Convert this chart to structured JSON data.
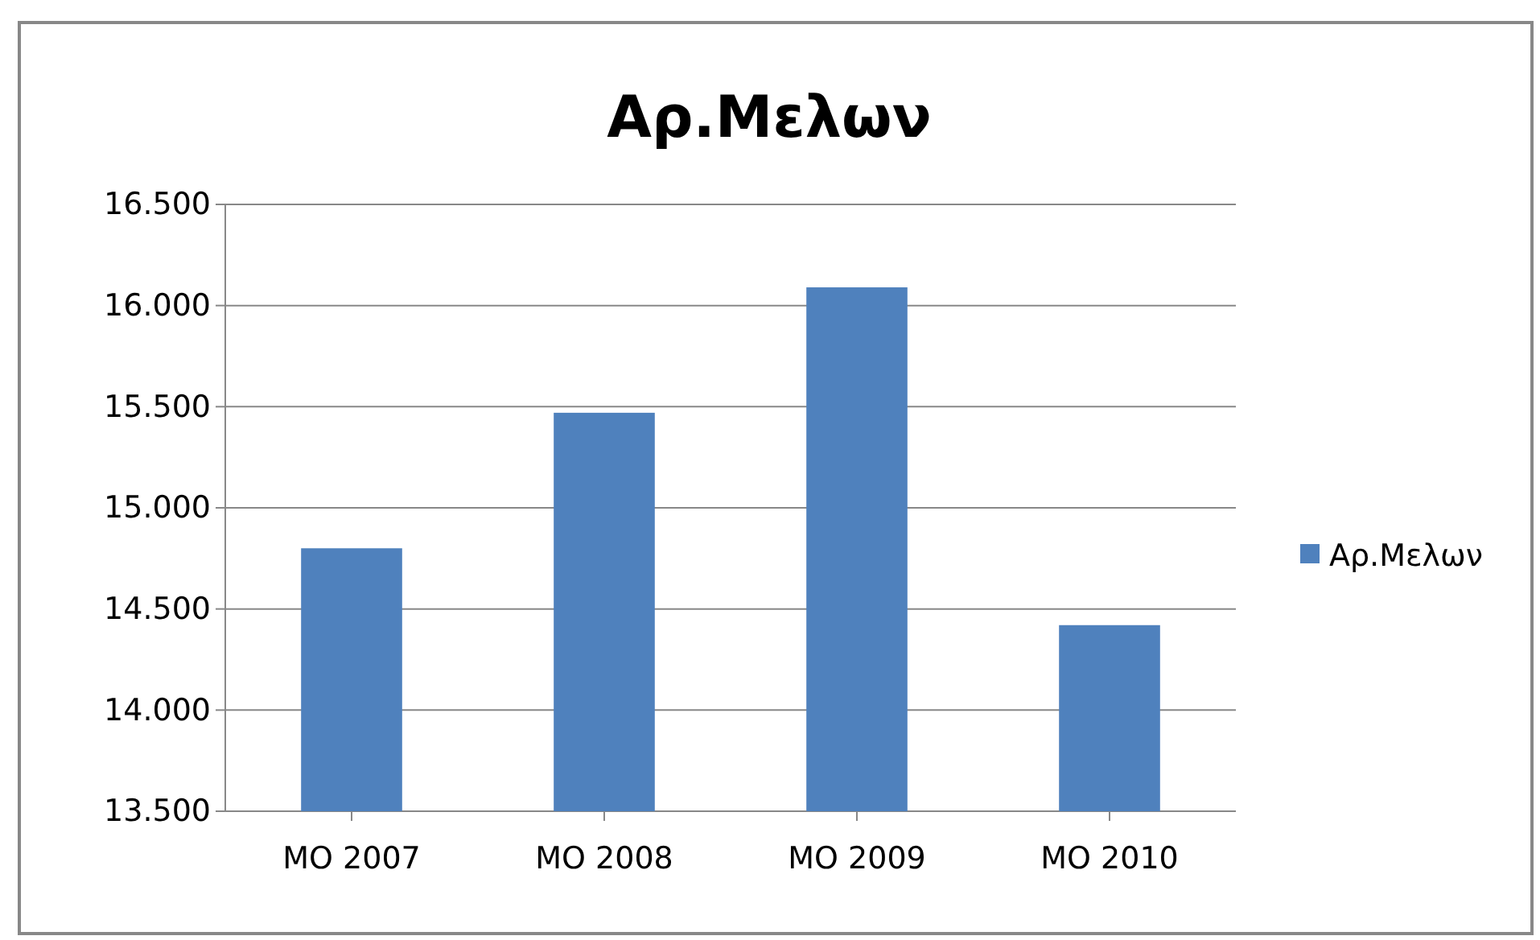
{
  "chart_data": {
    "type": "bar",
    "title": "Αρ.Μελων",
    "categories": [
      "ΜΟ 2007",
      "ΜΟ 2008",
      "ΜΟ 2009",
      "ΜΟ 2010"
    ],
    "series": [
      {
        "name": "Αρ.Μελων",
        "color": "#4f81bd",
        "values": [
          14800,
          15470,
          16090,
          14420
        ]
      }
    ],
    "ylim": [
      13500,
      16500
    ],
    "yticks": [
      {
        "value": 13500,
        "label": "13.500"
      },
      {
        "value": 14000,
        "label": "14.000"
      },
      {
        "value": 14500,
        "label": "14.500"
      },
      {
        "value": 15000,
        "label": "15.000"
      },
      {
        "value": 15500,
        "label": "15.500"
      },
      {
        "value": 16000,
        "label": "16.000"
      },
      {
        "value": 16500,
        "label": "16.500"
      }
    ],
    "grid": "y",
    "legend": "right"
  }
}
